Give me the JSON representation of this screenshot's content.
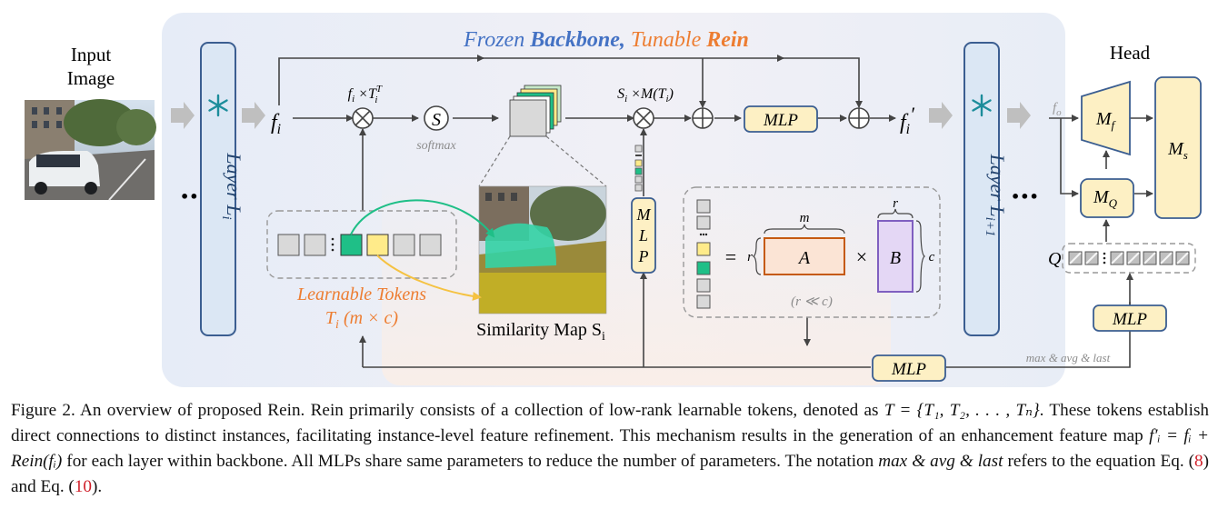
{
  "title": {
    "frozen": "Frozen",
    "backbone": "Backbone,",
    "tunable": "Tunable",
    "rein": "Rein"
  },
  "input": {
    "line1": "Input",
    "line2": "Image"
  },
  "layer_i": {
    "base": "Layer L",
    "sub": "i"
  },
  "layer_i1": {
    "base": "Layer L",
    "sub": "i+1"
  },
  "ellipsis": "•••",
  "symbols": {
    "fi": "f",
    "fi_sub": "i",
    "fi_prime": "f",
    "fi_prime_sub": "i",
    "fi_prime_mark": "′",
    "mult1": "f",
    "mult1_sub": "i",
    "mult1_op": " ×T",
    "mult1_sup": "T",
    "mult1_sub2": "i",
    "softmax_s": "S",
    "softmax_label": "softmax",
    "mult2": "S",
    "mult2_sub": "i",
    "mult2_rest": " ×M(T",
    "mult2_sub2": "i",
    "mult2_end": ")"
  },
  "mlp": {
    "top": "MLP",
    "vertical": [
      "M",
      "L",
      "P"
    ],
    "bottom": "MLP",
    "head": "MLP"
  },
  "tokens": {
    "label1": "Learnable Tokens",
    "label2": "T",
    "label2_sub": "i",
    "label2_rest": " (m × c)",
    "colors": [
      "#d9d9d9",
      "#d9d9d9",
      "#1fbf87",
      "#ffeb8a",
      "#d9d9d9",
      "#d9d9d9"
    ]
  },
  "similarity": {
    "label": "Similarity Map S",
    "sub": "i"
  },
  "lowrank": {
    "equals": "=",
    "r_left": "r",
    "m": "m",
    "A": "A",
    "times": "×",
    "r_top": "r",
    "B": "B",
    "c": "c",
    "note": "(r ≪ c)"
  },
  "head": {
    "title": "Head",
    "fo": "f",
    "fo_sub": "o",
    "Mf": "M",
    "Mf_sub": "f",
    "MQ": "M",
    "MQ_sub": "Q",
    "Ms": "M",
    "Ms_sub": "s",
    "Q": "Q",
    "pool_label": "max & avg & last"
  },
  "colors": {
    "panel": "#e8edf6",
    "layer_fill": "#dbe7f4",
    "layer_stroke": "#3b5e91",
    "yellow_fill": "#fdf0c4",
    "blue_text": "#4472c4",
    "orange_text": "#ed7d31",
    "A_fill": "#fbe4d5",
    "A_stroke": "#c55a11",
    "B_fill": "#e4d7f5",
    "B_stroke": "#7f5fc0",
    "snow": "#1c8d9b"
  },
  "caption": {
    "p1": "Figure 2.   An overview of proposed Rein.  Rein primarily consists of a collection of low-rank learnable tokens, denoted as ",
    "p1_math": "T  =  {T₁, T₂, . . . , Tₙ}",
    "p2": ".  These tokens establish direct connections to distinct instances, facilitating instance-level feature refinement.  This mechanism results in the generation of an enhancement feature map ",
    "p2_math": "f′ᵢ = fᵢ + Rein(fᵢ)",
    "p3": " for each layer within backbone. All MLPs share same parameters to reduce the number of parameters. The notation ",
    "p3_math": "max & avg & last",
    "p4": " refers to the equation Eq. (",
    "ref1": "8",
    "p5": ") and Eq. (",
    "ref2": "10",
    "p6": ")."
  }
}
